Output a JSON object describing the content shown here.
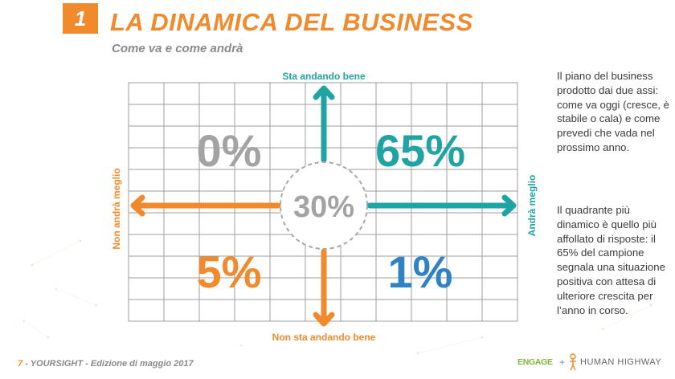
{
  "header": {
    "badge": "1",
    "title": "LA DINAMICA DEL BUSINESS",
    "subtitle": "Come va e come andrà"
  },
  "diagram": {
    "axis_top": "Sta andando bene",
    "axis_bottom": "Non sta andando bene",
    "axis_left": "Non andrà meglio",
    "axis_right": "Andrà meglio",
    "q_top_left": "0%",
    "q_top_right": "65%",
    "q_bottom_left": "5%",
    "q_bottom_right": "1%",
    "center": "30%"
  },
  "colors": {
    "orange": "#f08a2c",
    "teal": "#1fa3a3",
    "blue": "#2f82c3",
    "gray": "#a3a3a3"
  },
  "side_text": {
    "paragraph1": "Il piano del business prodotto dai due assi: come va oggi (cresce, è stabile o cala) e come prevedi che vada nel prossimo anno.",
    "paragraph2": "Il quadrante più dinamico è quello più affollato di risposte: il 65% del campione segnala una situazione positiva con attesa di ulteriore crescita per l’anno in corso."
  },
  "footer": {
    "page_number": "7",
    "source": " - YOURSIGHT - Edizione di maggio 2017",
    "logo_engage": "ENGAGE",
    "logo_plus": "+",
    "logo_hh": "HUMAN HIGHWAY"
  }
}
